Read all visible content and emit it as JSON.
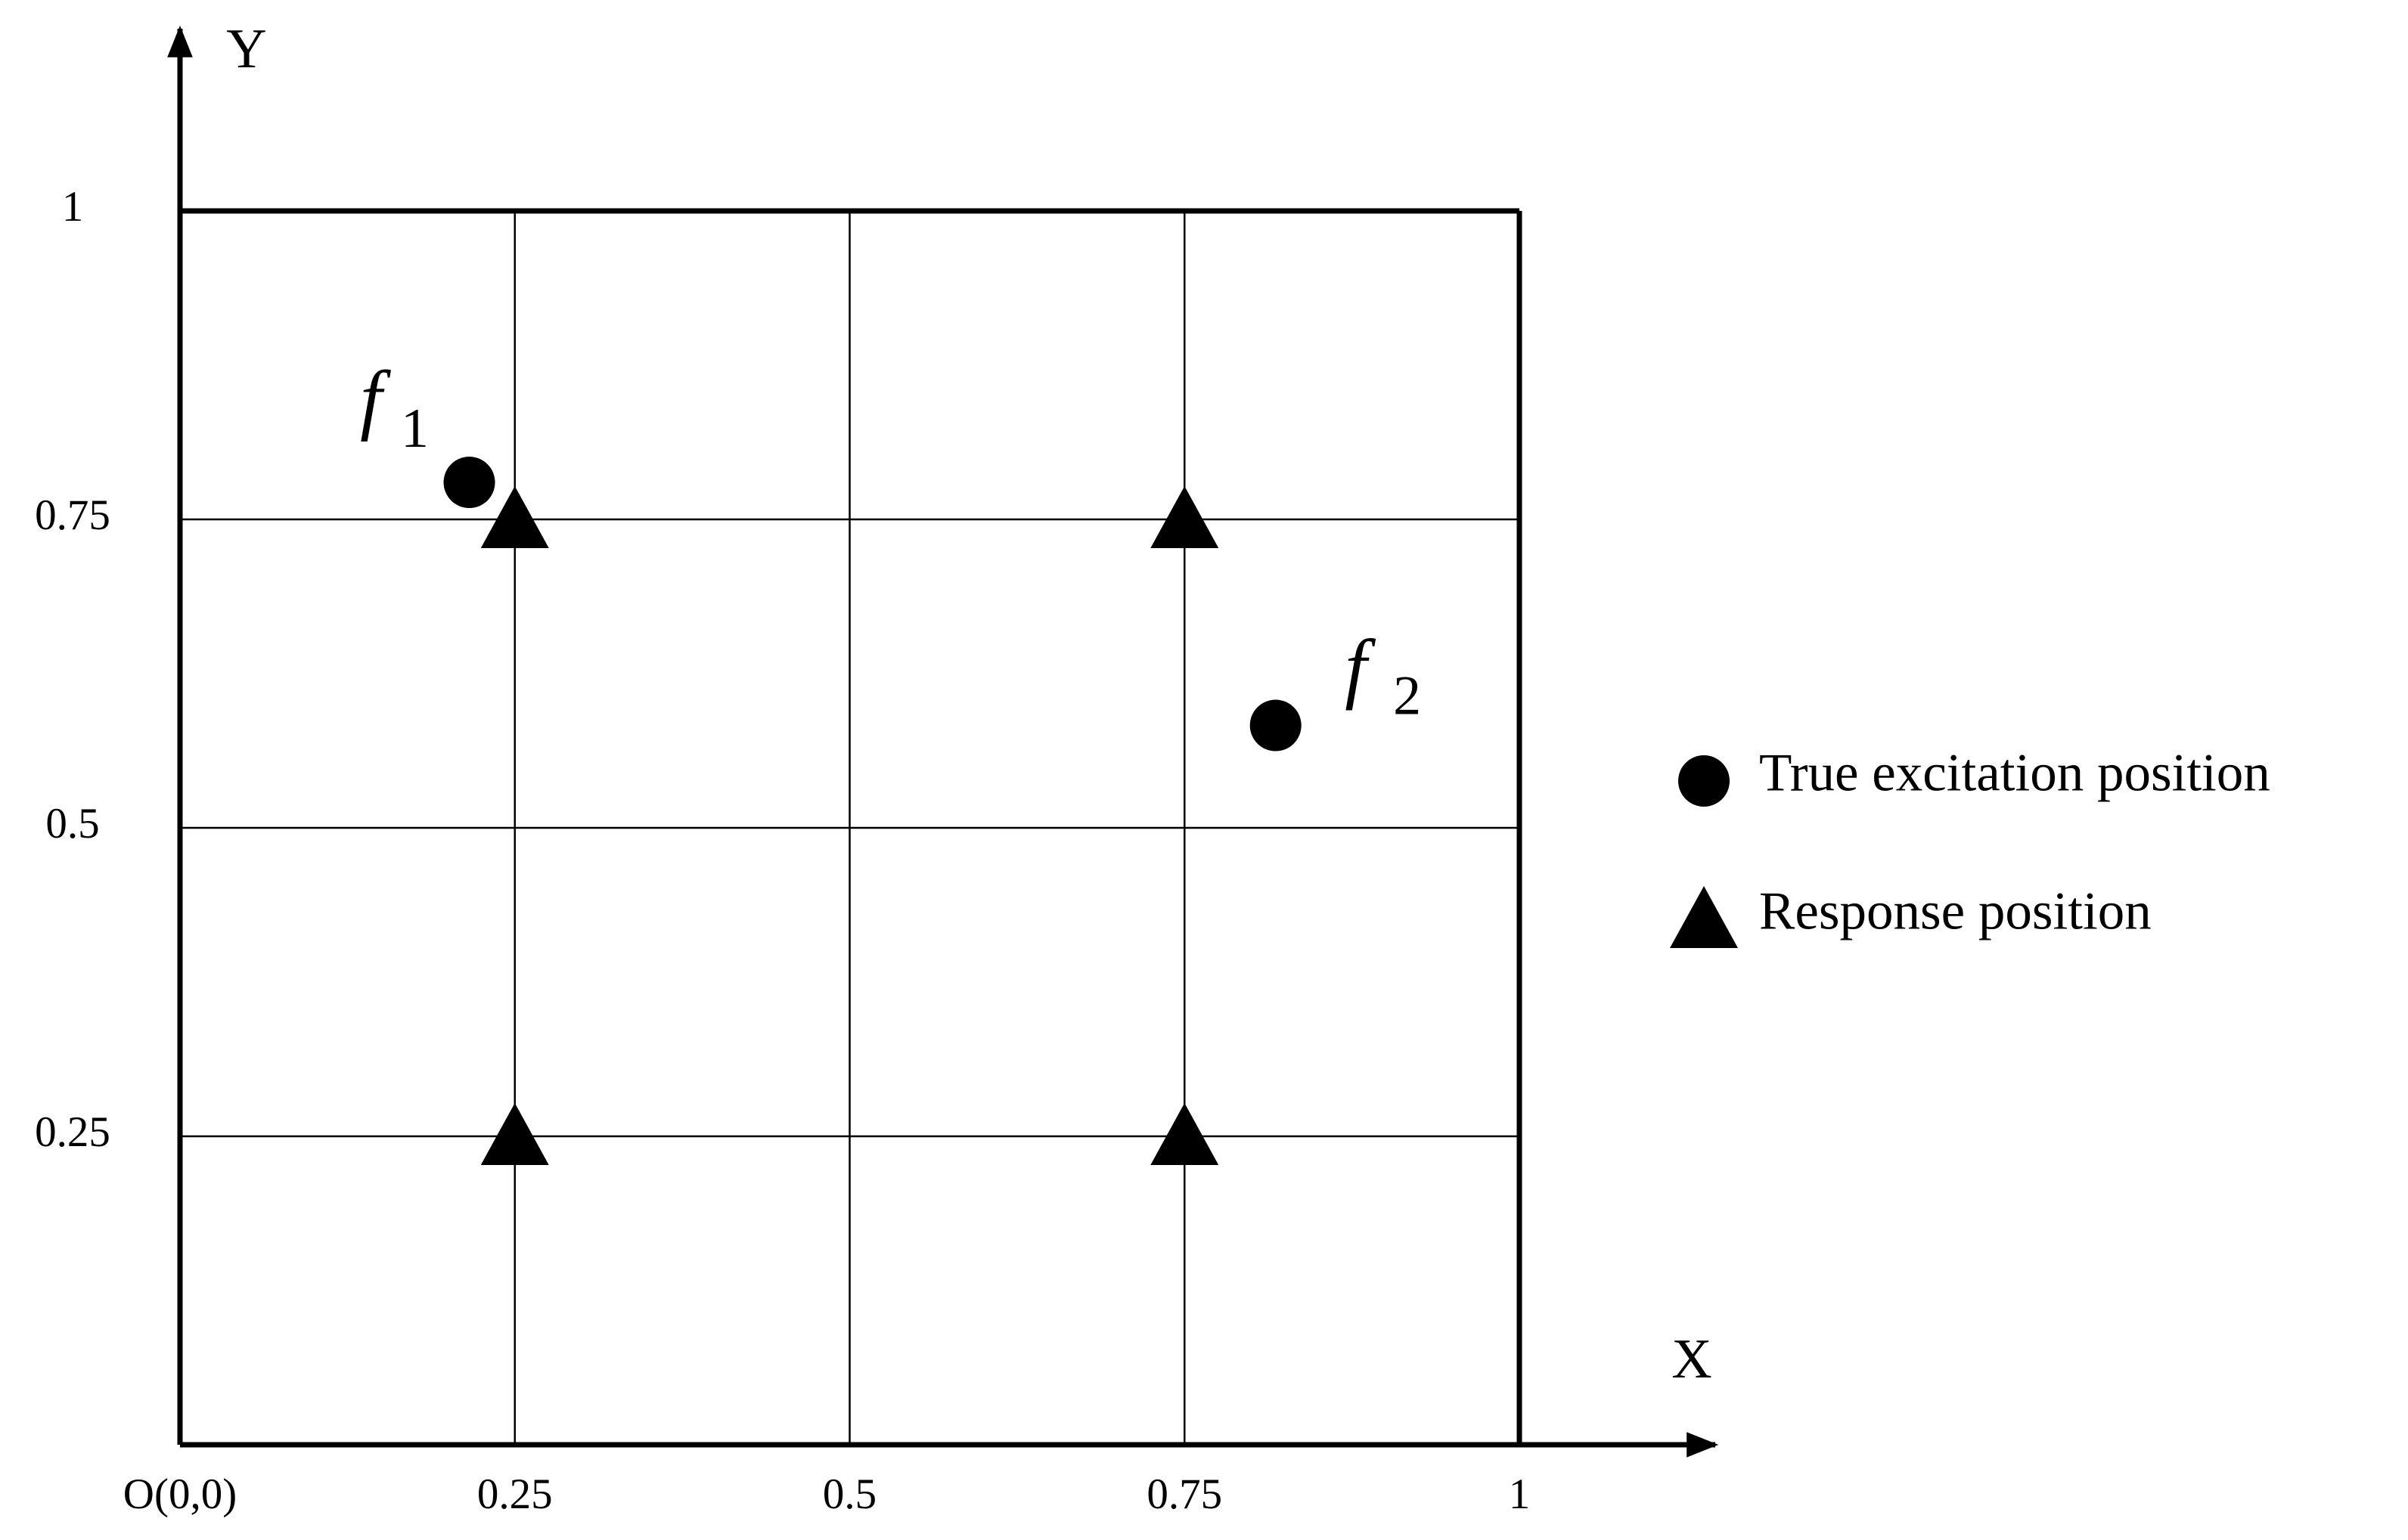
{
  "chart_data": {
    "type": "scatter",
    "x_label": "X",
    "y_label": "Y",
    "xlim": [
      0,
      1
    ],
    "ylim": [
      0,
      1
    ],
    "xticks": [
      {
        "value": 0,
        "label": "O(0,0)"
      },
      0.25,
      0.5,
      0.75,
      1
    ],
    "yticks": [
      0.25,
      0.5,
      0.75,
      1
    ],
    "grid": true,
    "legend": "right",
    "series": [
      {
        "name": "True excitation position",
        "marker": "circle",
        "color": "#000000",
        "x": [
          0.216,
          0.818
        ],
        "values": [
          0.78,
          0.583
        ],
        "point_labels": [
          [
            "f",
            "1"
          ],
          [
            "f",
            "2"
          ]
        ]
      },
      {
        "name": "Response position",
        "marker": "triangle",
        "color": "#000000",
        "x": [
          0.25,
          0.75,
          0.25,
          0.75
        ],
        "values": [
          0.75,
          0.75,
          0.25,
          0.25
        ]
      }
    ]
  }
}
